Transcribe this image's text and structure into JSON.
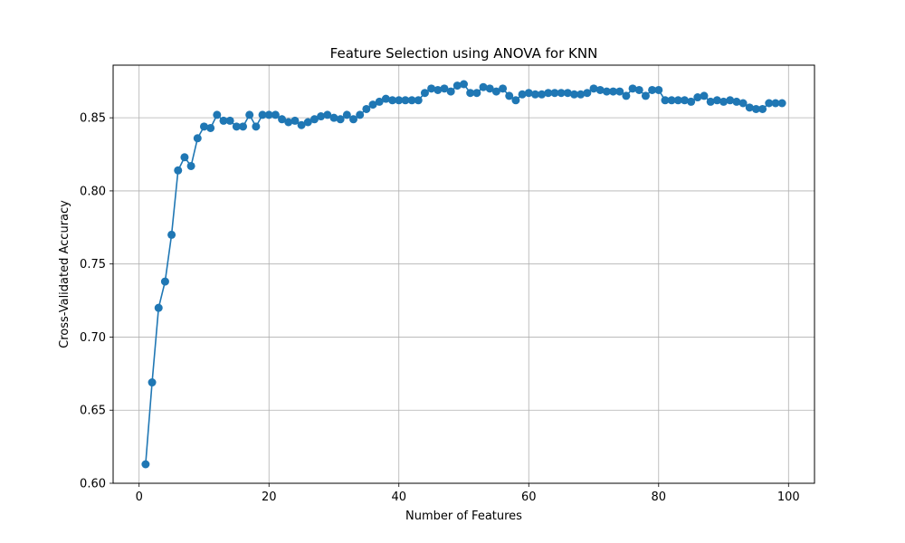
{
  "chart_data": {
    "type": "line",
    "title": "Feature Selection using ANOVA for KNN",
    "xlabel": "Number of Features",
    "ylabel": "Cross-Validated Accuracy",
    "xlim": [
      -4,
      104
    ],
    "ylim": [
      0.6,
      0.886
    ],
    "xticks": [
      0,
      20,
      40,
      60,
      80,
      100
    ],
    "yticks": [
      0.6,
      0.65,
      0.7,
      0.75,
      0.8,
      0.85
    ],
    "xtick_labels": [
      "0",
      "20",
      "40",
      "60",
      "80",
      "100"
    ],
    "ytick_labels": [
      "0.60",
      "0.65",
      "0.70",
      "0.75",
      "0.80",
      "0.85"
    ],
    "grid": true,
    "color": "#1f77b4",
    "marker": "circle",
    "x": [
      1,
      2,
      3,
      4,
      5,
      6,
      7,
      8,
      9,
      10,
      11,
      12,
      13,
      14,
      15,
      16,
      17,
      18,
      19,
      20,
      21,
      22,
      23,
      24,
      25,
      26,
      27,
      28,
      29,
      30,
      31,
      32,
      33,
      34,
      35,
      36,
      37,
      38,
      39,
      40,
      41,
      42,
      43,
      44,
      45,
      46,
      47,
      48,
      49,
      50,
      51,
      52,
      53,
      54,
      55,
      56,
      57,
      58,
      59,
      60,
      61,
      62,
      63,
      64,
      65,
      66,
      67,
      68,
      69,
      70,
      71,
      72,
      73,
      74,
      75,
      76,
      77,
      78,
      79,
      80,
      81,
      82,
      83,
      84,
      85,
      86,
      87,
      88,
      89,
      90,
      91,
      92,
      93,
      94,
      95,
      96,
      97,
      98,
      99
    ],
    "y": [
      0.613,
      0.669,
      0.72,
      0.738,
      0.77,
      0.814,
      0.823,
      0.817,
      0.836,
      0.844,
      0.843,
      0.852,
      0.848,
      0.848,
      0.844,
      0.844,
      0.852,
      0.844,
      0.852,
      0.852,
      0.852,
      0.849,
      0.847,
      0.848,
      0.845,
      0.847,
      0.849,
      0.851,
      0.852,
      0.85,
      0.849,
      0.852,
      0.849,
      0.852,
      0.856,
      0.859,
      0.861,
      0.863,
      0.862,
      0.862,
      0.862,
      0.862,
      0.862,
      0.867,
      0.87,
      0.869,
      0.87,
      0.868,
      0.872,
      0.873,
      0.867,
      0.867,
      0.871,
      0.87,
      0.868,
      0.87,
      0.865,
      0.862,
      0.866,
      0.867,
      0.866,
      0.866,
      0.867,
      0.867,
      0.867,
      0.867,
      0.866,
      0.866,
      0.867,
      0.87,
      0.869,
      0.868,
      0.868,
      0.868,
      0.865,
      0.87,
      0.869,
      0.865,
      0.869,
      0.869,
      0.862,
      0.862,
      0.862,
      0.862,
      0.861,
      0.864,
      0.865,
      0.861,
      0.862,
      0.861,
      0.862,
      0.861,
      0.86,
      0.857,
      0.856,
      0.856,
      0.86,
      0.86,
      0.86
    ]
  }
}
